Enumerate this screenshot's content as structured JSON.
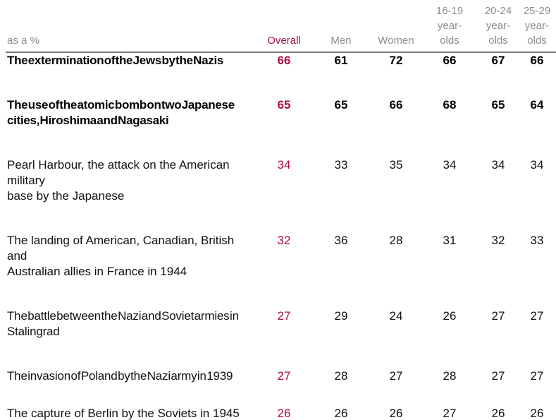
{
  "chart_data": {
    "type": "table",
    "unit_label": "as a %",
    "columns": [
      "Overall",
      "Men",
      "Women",
      "16-19 year-olds",
      "20-24 year-olds",
      "25-29 year-olds"
    ],
    "rows": [
      {
        "label": "The extermination of the Jews by the Nazis",
        "values": [
          66,
          61,
          72,
          66,
          67,
          66
        ],
        "emphasis": true
      },
      {
        "label": "The use of the atomic bomb on two Japanese cities, Hiroshima and Nagasaki",
        "values": [
          65,
          65,
          66,
          68,
          65,
          64
        ],
        "emphasis": true
      },
      {
        "label": "Pearl Harbour, the attack on the American military base by the Japanese",
        "values": [
          34,
          33,
          35,
          34,
          34,
          34
        ],
        "emphasis": false
      },
      {
        "label": "The landing of American, Canadian, British and Australian allies in France in 1944",
        "values": [
          32,
          36,
          28,
          31,
          32,
          33
        ],
        "emphasis": false
      },
      {
        "label": "The battle between the Nazi and Soviet armies in Stalingrad",
        "values": [
          27,
          29,
          24,
          26,
          27,
          27
        ],
        "emphasis": false
      },
      {
        "label": "The invasion of Poland by the Nazi army in 1939",
        "values": [
          27,
          28,
          27,
          28,
          27,
          27
        ],
        "emphasis": false
      },
      {
        "label": "The capture of Berlin by the Soviets in 1945",
        "values": [
          26,
          26,
          26,
          27,
          26,
          26
        ],
        "emphasis": false
      }
    ]
  },
  "display": {
    "corner_label": "as a %",
    "column_labels": [
      "Overall",
      "Men",
      "Women",
      "16-19\nyear-\nolds",
      "20-24\nyear-\nolds",
      "25-29\nyear-\nolds"
    ],
    "row_labels": [
      "The extermination of the Jews by the Nazis",
      "The use of the atomic bomb on two Japanese\ncities, Hiroshima and Nagasaki",
      "Pearl Harbour, the attack on the American military\nbase by the Japanese",
      "The landing of American, Canadian, British and\nAustralian allies in France in 1944",
      "The battle between the Nazi and Soviet armies in\nStalingrad",
      "The invasion of Poland by the Nazi army in 1939",
      "The capture of Berlin by the Soviets in 1945"
    ]
  },
  "colors": {
    "accent_red": "#b00d3f",
    "header_gray": "#8d8d8d",
    "rule_gray": "#7a7a7a",
    "body_text": "#111111"
  }
}
